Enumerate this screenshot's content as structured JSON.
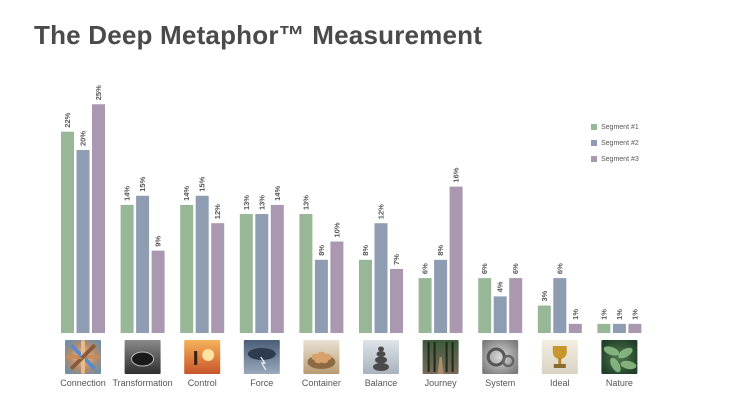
{
  "title": "The Deep Metaphor™ Measurement",
  "colors": {
    "segment1": "#98b797",
    "segment2": "#8f9db3",
    "segment3": "#aa98b1",
    "title": "#4a4a4a",
    "label": "#555555"
  },
  "chart_data": {
    "type": "bar",
    "categories": [
      "Connection",
      "Transformation",
      "Control",
      "Force",
      "Container",
      "Balance",
      "Journey",
      "System",
      "Ideal",
      "Nature"
    ],
    "category_icons": [
      "hands-together-image",
      "coffee-cup-image",
      "sunset-figure-image",
      "storm-clouds-image",
      "eggs-in-basket-image",
      "stacked-stones-image",
      "forest-path-image",
      "gears-image",
      "trophy-image",
      "green-leaves-image"
    ],
    "series": [
      {
        "name": "Segment #1",
        "values": [
          22,
          14,
          14,
          13,
          13,
          8,
          6,
          6,
          3,
          1
        ]
      },
      {
        "name": "Segment #2",
        "values": [
          20,
          15,
          15,
          13,
          8,
          12,
          8,
          4,
          6,
          1
        ]
      },
      {
        "name": "Segment #3",
        "values": [
          25,
          9,
          12,
          14,
          10,
          7,
          16,
          6,
          1,
          1
        ]
      }
    ],
    "value_suffix": "%",
    "data_labels": true,
    "grid": false,
    "legend_position": "top-right"
  }
}
